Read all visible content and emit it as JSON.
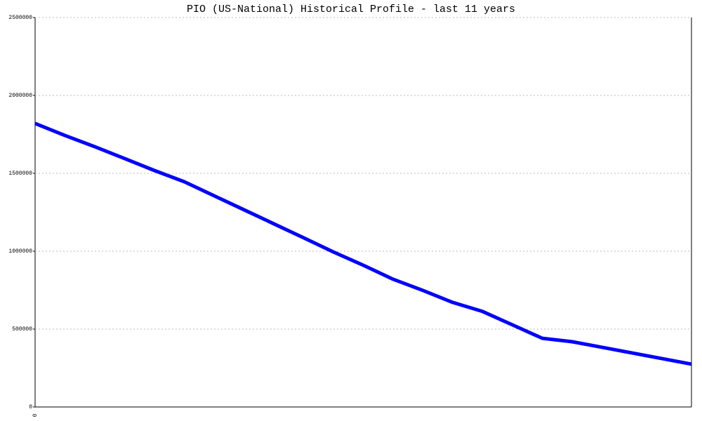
{
  "chart_data": {
    "type": "line",
    "title": "PIO (US-National) Historical Profile - last 11 years",
    "categories": [
      "0",
      null,
      null,
      null,
      null,
      null,
      null,
      null,
      null,
      null,
      null,
      null,
      null,
      null,
      null,
      null,
      null,
      null,
      null,
      null,
      null,
      null,
      null
    ],
    "series": [
      {
        "name": "PIO",
        "color": "#0000ff",
        "values": [
          1820000,
          1743000,
          1671000,
          1595000,
          1518000,
          1446000,
          1356000,
          1266000,
          1176000,
          1086000,
          995000,
          910000,
          820000,
          748000,
          671000,
          613000,
          527000,
          441000,
          419000,
          383000,
          347000,
          311000,
          275000
        ]
      }
    ],
    "ylim": [
      0,
      2500000
    ],
    "yticks": [
      0,
      500000,
      1000000,
      1500000,
      2000000,
      2500000
    ],
    "grid": true
  }
}
